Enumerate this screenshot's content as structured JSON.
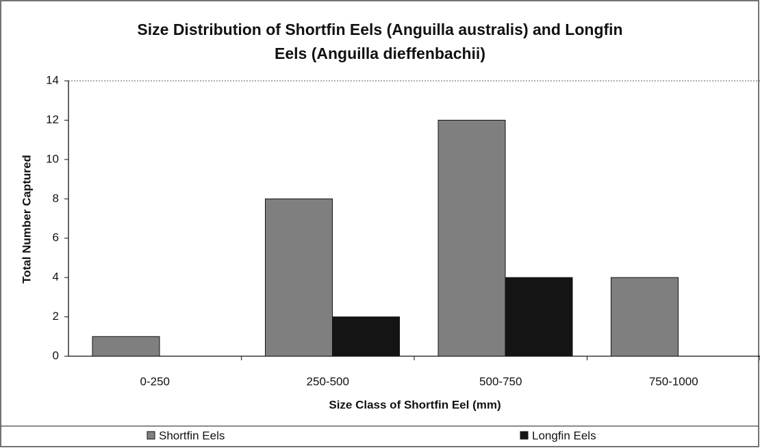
{
  "chart_data": {
    "type": "bar",
    "title": "Size Distribution of Shortfin Eels (Anguilla australis) and Longfin Eels (Anguilla dieffenbachii)",
    "xlabel": "Size Class of Shortfin Eel (mm)",
    "ylabel": "Total Number Captured",
    "categories": [
      "0-250",
      "250-500",
      "500-750",
      "750-1000"
    ],
    "series": [
      {
        "name": "Shortfin Eels",
        "color": "#7f7f7f",
        "values": [
          1,
          8,
          12,
          4
        ]
      },
      {
        "name": "Longfin Eels",
        "color": "#141414",
        "values": [
          0,
          2,
          4,
          0
        ]
      }
    ],
    "ylim": [
      0,
      14
    ],
    "yticks": [
      0,
      2,
      4,
      6,
      8,
      10,
      12,
      14
    ],
    "legend": "bottom"
  }
}
